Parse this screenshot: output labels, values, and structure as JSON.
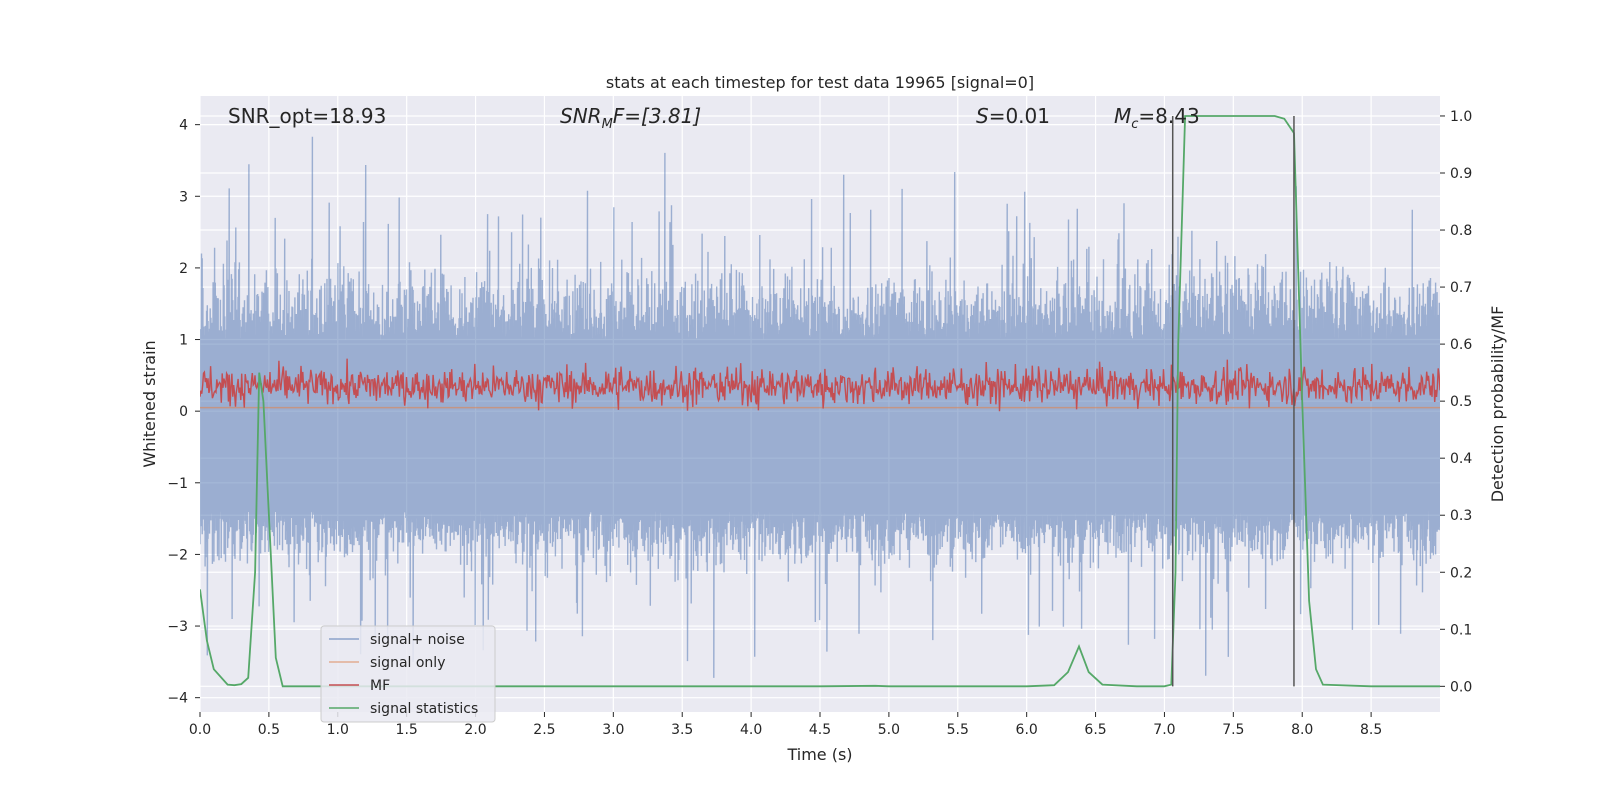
{
  "chart_data": {
    "type": "line",
    "title": "stats at each timestep for test data 19965 [signal=0]",
    "xlabel": "Time (s)",
    "ylabel_left": "Whitened strain",
    "ylabel_right": "Detection probability/MF",
    "xlim": [
      0.0,
      9.0
    ],
    "ylim_left": [
      -4.2,
      4.4
    ],
    "ylim_right": [
      -0.045,
      1.035
    ],
    "x_ticks": [
      "0.0",
      "0.5",
      "1.0",
      "1.5",
      "2.0",
      "2.5",
      "3.0",
      "3.5",
      "4.0",
      "4.5",
      "5.0",
      "5.5",
      "6.0",
      "6.5",
      "7.0",
      "7.5",
      "8.0",
      "8.5"
    ],
    "y_ticks_left": [
      "4",
      "3",
      "2",
      "1",
      "0",
      "−1",
      "−2",
      "−3",
      "−4"
    ],
    "y_ticks_right": [
      "1.0",
      "0.9",
      "0.8",
      "0.7",
      "0.6",
      "0.5",
      "0.4",
      "0.3",
      "0.2",
      "0.1",
      "0.0"
    ],
    "grid": true,
    "legend_position": "lower-left",
    "annotations": {
      "snr_opt": "SNR_opt=18.93",
      "snr_mf_main": "SNR",
      "snr_mf_sub": "M",
      "snr_mf_rest": "F=[3.81]",
      "s_main": "S",
      "s_rest": "=0.01",
      "mc_main": "M",
      "mc_sub": "c",
      "mc_rest": "=8.43"
    },
    "vertical_lines_x": [
      7.06,
      7.94
    ],
    "series": [
      {
        "name": "signal+ noise",
        "color": "#4c72b0",
        "axis": "left",
        "style": "noise band, roughly -2 to 2.7 with spikes up to 4"
      },
      {
        "name": "signal only",
        "color": "#dd8452",
        "axis": "left",
        "values_constant": 0.05
      },
      {
        "name": "MF",
        "color": "#c44e52",
        "axis": "left",
        "style": "noise band roughly 0 to 0.9"
      },
      {
        "name": "signal statistics",
        "color": "#55a868",
        "axis": "right",
        "x": [
          0.0,
          0.05,
          0.1,
          0.2,
          0.25,
          0.3,
          0.35,
          0.4,
          0.43,
          0.46,
          0.5,
          0.55,
          0.6,
          0.8,
          1.0,
          2.0,
          3.0,
          4.0,
          4.5,
          4.9,
          5.0,
          6.0,
          6.2,
          6.3,
          6.38,
          6.45,
          6.55,
          6.8,
          7.0,
          7.05,
          7.08,
          7.1,
          7.15,
          7.5,
          7.8,
          7.87,
          7.94,
          8.0,
          8.05,
          8.1,
          8.15,
          8.5,
          9.0
        ],
        "y": [
          0.17,
          0.08,
          0.03,
          0.003,
          0.002,
          0.004,
          0.015,
          0.2,
          0.55,
          0.5,
          0.3,
          0.05,
          0.0,
          0.0,
          0.0,
          0.0,
          0.0,
          0.0,
          0.0,
          0.001,
          0.0,
          0.0,
          0.002,
          0.025,
          0.07,
          0.025,
          0.003,
          0.0,
          0.0,
          0.003,
          0.2,
          0.6,
          1.0,
          1.0,
          1.0,
          0.995,
          0.97,
          0.5,
          0.15,
          0.03,
          0.003,
          0.0,
          0.0
        ]
      }
    ]
  }
}
